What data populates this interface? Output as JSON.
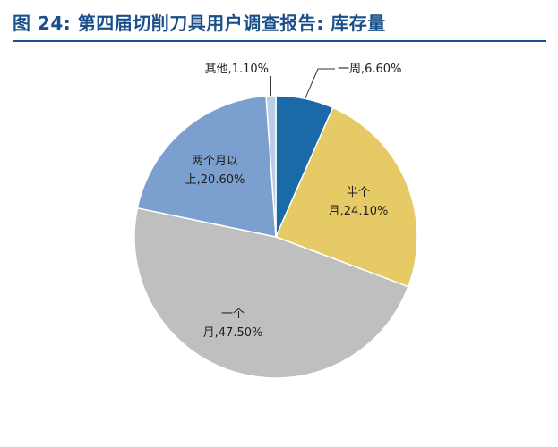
{
  "title": "图 24: 第四届切削刀具用户调查报告: 库存量",
  "chart_data": {
    "type": "pie",
    "title": "图 24: 第四届切削刀具用户调查报告: 库存量",
    "slices": [
      {
        "label": "一周",
        "value": 6.6,
        "display": "一周,6.60%",
        "color": "#1b6aa8"
      },
      {
        "label": "半个月",
        "value": 24.1,
        "display": "半个月,24.10%",
        "color": "#e6ca65"
      },
      {
        "label": "一个月",
        "value": 47.5,
        "display": "一个月,47.50%",
        "color": "#bfbfbf"
      },
      {
        "label": "两个月以上",
        "value": 20.6,
        "display": "两个月以上,20.60%",
        "color": "#7b9fcf"
      },
      {
        "label": "其他",
        "value": 1.1,
        "display": "其他,1.10%",
        "color": "#b9cde6"
      }
    ],
    "label_lines": {
      "一周": [
        "一周,6.60%"
      ],
      "半个月": [
        "半个",
        "月,24.10%"
      ],
      "一个月": [
        "一个",
        "月,47.50%"
      ],
      "两个月以上": [
        "两个月以",
        "上,20.60%"
      ],
      "其他": [
        "其他,1.10%"
      ]
    }
  }
}
